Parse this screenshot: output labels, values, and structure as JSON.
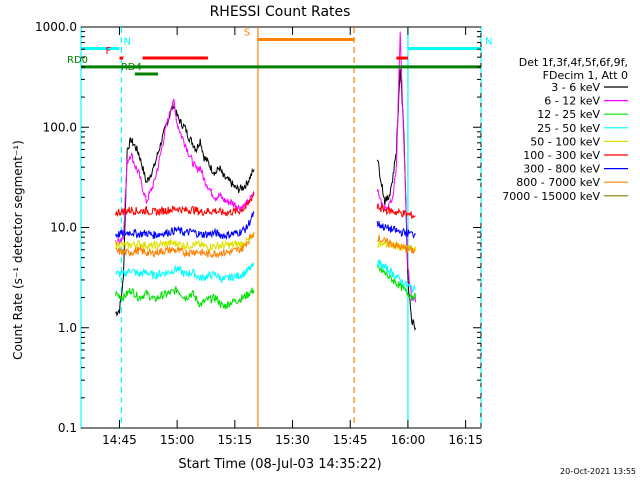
{
  "chart_data": {
    "type": "line",
    "title": "RHESSI Count Rates",
    "xlabel": "Start Time (08-Jul-03 14:35:22)",
    "ylabel": "Count Rate (s⁻¹ detector segment⁻¹)",
    "yscale": "log",
    "ylim": [
      0.1,
      1000
    ],
    "xlim_minutes": [
      0,
      104
    ],
    "x_ticks": [
      {
        "label": "14:45",
        "min": 10
      },
      {
        "label": "15:00",
        "min": 25
      },
      {
        "label": "15:15",
        "min": 40
      },
      {
        "label": "15:30",
        "min": 55
      },
      {
        "label": "15:45",
        "min": 70
      },
      {
        "label": "16:00",
        "min": 85
      },
      {
        "label": "16:15",
        "min": 100
      }
    ],
    "y_ticks": [
      {
        "label": "1000.0",
        "v": 1000
      },
      {
        "label": "100.0",
        "v": 100
      },
      {
        "label": "10.0",
        "v": 10
      },
      {
        "label": "1.0",
        "v": 1
      },
      {
        "label": "0.1",
        "v": 0.1
      }
    ],
    "legend_header": [
      "Det 1f,3f,4f,5f,6f,9f,",
      "FDecim 1, Att 0"
    ],
    "legend_placement": "right",
    "series": [
      {
        "name": "3 - 6 keV",
        "color": "#000000"
      },
      {
        "name": "6 - 12 keV",
        "color": "#ff00ff"
      },
      {
        "name": "12 - 25 keV",
        "color": "#00e000"
      },
      {
        "name": "25 - 50 keV",
        "color": "#00ffff"
      },
      {
        "name": "50 - 100 keV",
        "color": "#e0e000"
      },
      {
        "name": "100 - 300 keV",
        "color": "#ff0000"
      },
      {
        "name": "300 - 800 keV",
        "color": "#0000ff"
      },
      {
        "name": "800 - 7000 keV",
        "color": "#ff8000"
      },
      {
        "name": "7000 - 15000 keV",
        "color": "#808000"
      }
    ],
    "segments": [
      {
        "name": "3 - 6 keV",
        "x": [
          9,
          10,
          11,
          12,
          13,
          14,
          15,
          16,
          17,
          19,
          20,
          22,
          24,
          25,
          26,
          27,
          28,
          29,
          30,
          31,
          32,
          33,
          34,
          35,
          36,
          37,
          38,
          39,
          40,
          41,
          42,
          43,
          44,
          45
        ],
        "y": [
          1.4,
          1.5,
          3,
          60,
          75,
          65,
          55,
          40,
          28,
          40,
          55,
          100,
          170,
          130,
          110,
          100,
          80,
          70,
          60,
          75,
          50,
          45,
          38,
          35,
          40,
          32,
          30,
          28,
          25,
          24,
          25,
          27,
          32,
          38
        ]
      },
      {
        "name": "6 - 12 keV",
        "x": [
          9,
          10,
          11,
          12,
          13,
          14,
          15,
          16,
          17,
          19,
          20,
          22,
          24,
          25,
          26,
          27,
          28,
          29,
          30,
          31,
          32,
          33,
          34,
          35,
          36,
          37,
          38,
          39,
          40,
          41,
          42,
          43,
          44,
          45
        ],
        "y": [
          7,
          7.5,
          8,
          45,
          55,
          42,
          35,
          25,
          18,
          28,
          40,
          95,
          190,
          110,
          85,
          70,
          55,
          45,
          38,
          40,
          30,
          26,
          22,
          20,
          21,
          19,
          18,
          18,
          17,
          16,
          16,
          17,
          19,
          22
        ]
      },
      {
        "name": "12 - 25 keV",
        "x": [
          9,
          11,
          13,
          15,
          17,
          19,
          21,
          23,
          25,
          27,
          29,
          31,
          33,
          35,
          37,
          39,
          41,
          43,
          45
        ],
        "y": [
          2.2,
          2.0,
          2.4,
          2.0,
          2.2,
          1.9,
          2.1,
          2.2,
          2.4,
          2.0,
          2.2,
          1.7,
          1.9,
          2.0,
          1.6,
          1.8,
          1.9,
          2.1,
          2.4
        ]
      },
      {
        "name": "25 - 50 keV",
        "x": [
          9,
          11,
          13,
          15,
          17,
          19,
          21,
          23,
          25,
          27,
          29,
          31,
          33,
          35,
          37,
          39,
          41,
          43,
          45
        ],
        "y": [
          3.5,
          3.4,
          3.8,
          3.4,
          3.6,
          3.3,
          3.5,
          3.6,
          3.9,
          3.4,
          3.6,
          3.1,
          3.3,
          3.4,
          3.0,
          3.2,
          3.3,
          3.6,
          4.2
        ]
      },
      {
        "name": "50 - 100 keV",
        "x": [
          9,
          12,
          15,
          18,
          21,
          24,
          27,
          30,
          33,
          36,
          39,
          42,
          45
        ],
        "y": [
          6.8,
          6.6,
          6.9,
          6.5,
          6.8,
          7.0,
          6.6,
          6.8,
          6.4,
          6.6,
          6.7,
          6.9,
          8
        ]
      },
      {
        "name": "100 - 300 keV",
        "x": [
          9,
          11,
          13,
          15,
          17,
          19,
          21,
          23,
          25,
          27,
          29,
          31,
          33,
          35,
          37,
          39,
          41,
          43,
          45
        ],
        "y": [
          14,
          14.5,
          15,
          14.5,
          14.8,
          14.2,
          14.6,
          15,
          15.5,
          14.8,
          15.2,
          14.3,
          14.5,
          14.7,
          14,
          14.3,
          14.6,
          16,
          22
        ]
      },
      {
        "name": "300 - 800 keV",
        "x": [
          9,
          11,
          13,
          15,
          17,
          19,
          21,
          23,
          25,
          27,
          29,
          31,
          33,
          35,
          37,
          39,
          41,
          43,
          45
        ],
        "y": [
          8.5,
          8.7,
          9,
          8.6,
          8.8,
          8.4,
          8.7,
          9,
          9.5,
          8.8,
          9.1,
          8.5,
          8.6,
          8.8,
          8.3,
          8.6,
          8.9,
          9.8,
          14
        ]
      },
      {
        "name": "800 - 7000 keV",
        "x": [
          9,
          12,
          15,
          18,
          21,
          24,
          27,
          30,
          33,
          36,
          39,
          42,
          45
        ],
        "y": [
          5.8,
          5.6,
          5.9,
          5.5,
          5.8,
          6.0,
          5.6,
          5.8,
          5.4,
          5.6,
          5.7,
          6.2,
          9
        ]
      },
      {
        "name": "3 - 6 keV",
        "x": [
          77,
          78,
          79,
          80,
          81,
          82,
          83,
          84,
          85,
          86,
          87
        ],
        "y": [
          50,
          30,
          18,
          20,
          30,
          60,
          400,
          80,
          3,
          1.2,
          1.0
        ]
      },
      {
        "name": "6 - 12 keV",
        "x": [
          77,
          78,
          79,
          80,
          81,
          82,
          83,
          84,
          85,
          86,
          87
        ],
        "y": [
          25,
          18,
          15,
          16,
          20,
          40,
          900,
          60,
          4,
          2,
          1.8
        ]
      },
      {
        "name": "12 - 25 keV",
        "x": [
          77,
          79,
          81,
          83,
          85,
          87
        ],
        "y": [
          4,
          3.5,
          3,
          2.6,
          2.2,
          2.0
        ]
      },
      {
        "name": "25 - 50 keV",
        "x": [
          77,
          79,
          81,
          83,
          85,
          87
        ],
        "y": [
          4.5,
          4,
          3.5,
          3.0,
          2.6,
          2.4
        ]
      },
      {
        "name": "50 - 100 keV",
        "x": [
          77,
          79,
          81,
          83,
          85,
          87
        ],
        "y": [
          7,
          6.8,
          6.6,
          6.4,
          6.2,
          6
        ]
      },
      {
        "name": "100 - 300 keV",
        "x": [
          77,
          79,
          81,
          83,
          85,
          87
        ],
        "y": [
          16,
          15,
          14.5,
          14,
          13.5,
          13
        ]
      },
      {
        "name": "300 - 800 keV",
        "x": [
          77,
          79,
          81,
          83,
          85,
          87
        ],
        "y": [
          11,
          10,
          9.5,
          9,
          8.8,
          8.5
        ]
      },
      {
        "name": "800 - 7000 keV",
        "x": [
          77,
          79,
          81,
          83,
          85,
          87
        ],
        "y": [
          8,
          7.2,
          6.8,
          6.4,
          6.0,
          5.8
        ]
      }
    ],
    "flags": [
      {
        "label": "N",
        "color": "#00ffff",
        "x1": 0,
        "x2": 10,
        "y": 610
      },
      {
        "label": "N",
        "color": "#00ffff",
        "x1": 85,
        "x2": 104,
        "y": 610
      },
      {
        "label": "F",
        "color": "#ff0000",
        "x1": 10,
        "x2": 11,
        "y": 490
      },
      {
        "label": "",
        "color": "#ff0000",
        "x1": 16,
        "x2": 33,
        "y": 490
      },
      {
        "label": "",
        "color": "#ff0000",
        "x1": 82,
        "x2": 85,
        "y": 490
      },
      {
        "label": "RD0",
        "color": "#008000",
        "x1": 0,
        "x2": 104,
        "y": 400
      },
      {
        "label": "RD4",
        "color": "#008000",
        "x1": 14,
        "x2": 20,
        "y": 340
      },
      {
        "label": "S",
        "color": "#ff8000",
        "x1": 46,
        "x2": 71,
        "y": 750
      }
    ],
    "vlines": [
      {
        "min": 0,
        "color": "#00ffff",
        "style": "solid"
      },
      {
        "min": 10.5,
        "color": "#00ffff",
        "style": "dashed"
      },
      {
        "min": 46,
        "color": "#ff8000",
        "style": "solid"
      },
      {
        "min": 71,
        "color": "#ff8000",
        "style": "dashed"
      },
      {
        "min": 85,
        "color": "#00ffff",
        "style": "solid"
      },
      {
        "min": 104,
        "color": "#00ffff",
        "style": "dashed"
      }
    ],
    "timestamp": "20-Oct-2021 13:55"
  }
}
